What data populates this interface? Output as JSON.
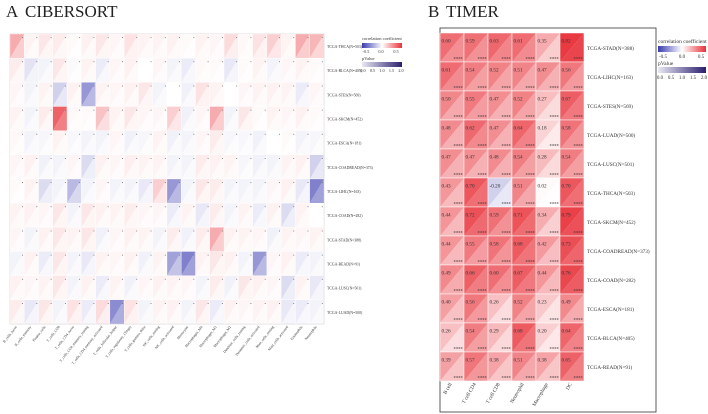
{
  "chart_data": [
    {
      "type": "heatmap",
      "panel_label": "A",
      "title": "CIBERSORT",
      "columns": [
        "B_cells_naive",
        "B_cells_memory",
        "Plasma_cells",
        "T_cells_CD8",
        "T_cells_CD4_naive",
        "T_cells_CD4_memory_resting",
        "T_cells_CD4_memory_activated",
        "T_cells_follicular_helper",
        "T_cells_regulatory_(Tregs)",
        "T_cells_gamma_delta",
        "NK_cells_resting",
        "NK_cells_activated",
        "Monocytes",
        "Macrophages_M0",
        "Macrophages_M1",
        "Macrophages_M2",
        "Dendritic_cells_resting",
        "Dendritic_cells_activated",
        "Mast_cells_resting",
        "Mast_cells_activated",
        "Eosinophils",
        "Neutrophils"
      ],
      "rows": [
        "TCGA-THCA(N=503)",
        "TCGA-BLCA(N=405)",
        "TCGA-STES(N=569)",
        "TCGA-SKCM(N=452)",
        "TCGA-ESCA(N=181)",
        "TCGA-COADREAD(N=373)",
        "TCGA-LIHC(N=163)",
        "TCGA-COAD(N=282)",
        "TCGA-STAD(N=388)",
        "TCGA-READ(N=91)",
        "TCGA-LUSC(N=501)",
        "TCGA-LUAD(N=500)"
      ],
      "values": [
        [
          0.35,
          0.05,
          0.1,
          0.08,
          0.02,
          0.06,
          0.1,
          0.04,
          0.12,
          0.05,
          0.05,
          0.06,
          0.02,
          0.05,
          0.04,
          0.15,
          0.03,
          0.12,
          0.2,
          0.05,
          0.35,
          0.3
        ],
        [
          0.08,
          -0.12,
          -0.05,
          0.1,
          -0.02,
          0.05,
          -0.08,
          0.04,
          0.06,
          0.0,
          0.04,
          -0.05,
          -0.08,
          0.03,
          0.02,
          -0.1,
          0.02,
          0.05,
          -0.05,
          0.04,
          0.05,
          0.02
        ],
        [
          0.04,
          -0.05,
          0.05,
          -0.2,
          0.06,
          -0.45,
          0.05,
          0.04,
          0.06,
          0.1,
          -0.05,
          0.0,
          -0.06,
          0.12,
          0.05,
          0.0,
          0.04,
          0.05,
          0.06,
          0.05,
          -0.08,
          0.04
        ],
        [
          0.05,
          -0.05,
          0.08,
          0.65,
          0.03,
          0.02,
          0.25,
          0.05,
          0.1,
          0.04,
          0.04,
          0.2,
          -0.06,
          0.04,
          0.35,
          -0.05,
          0.1,
          0.02,
          0.05,
          0.04,
          0.06,
          0.02
        ],
        [
          0.03,
          -0.05,
          -0.04,
          0.05,
          -0.03,
          -0.05,
          -0.05,
          0.04,
          -0.06,
          -0.04,
          0.05,
          -0.06,
          -0.05,
          0.04,
          0.08,
          -0.04,
          -0.03,
          -0.06,
          0.0,
          0.02,
          -0.05,
          -0.04
        ],
        [
          0.04,
          0.06,
          -0.06,
          -0.05,
          0.04,
          -0.15,
          0.06,
          0.04,
          0.07,
          0.05,
          0.05,
          -0.05,
          -0.05,
          0.08,
          0.06,
          0.05,
          -0.04,
          -0.06,
          -0.05,
          0.05,
          0.06,
          -0.2
        ],
        [
          0.02,
          0.05,
          -0.15,
          -0.05,
          -0.3,
          -0.05,
          0.04,
          -0.05,
          -0.05,
          -0.1,
          0.2,
          -0.45,
          -0.05,
          0.1,
          0.08,
          -0.05,
          -0.05,
          -0.05,
          0.04,
          0.06,
          -0.1,
          -0.55
        ],
        [
          0.05,
          0.06,
          0.04,
          0.1,
          -0.05,
          0.1,
          0.06,
          0.05,
          0.08,
          0.04,
          0.04,
          -0.08,
          0.05,
          -0.1,
          0.08,
          -0.05,
          0.05,
          -0.08,
          0.06,
          -0.15,
          0.05,
          0.0
        ],
        [
          0.04,
          -0.05,
          0.06,
          0.1,
          0.05,
          0.1,
          -0.06,
          0.04,
          0.06,
          0.05,
          -0.05,
          0.08,
          -0.06,
          0.08,
          0.35,
          0.06,
          0.05,
          0.04,
          -0.06,
          0.05,
          0.04,
          0.05
        ],
        [
          -0.05,
          0.06,
          -0.08,
          0.1,
          -0.05,
          -0.1,
          0.05,
          0.04,
          0.06,
          -0.06,
          0.05,
          -0.4,
          -0.55,
          0.05,
          0.1,
          0.06,
          -0.05,
          -0.45,
          0.04,
          0.06,
          -0.08,
          -0.05
        ],
        [
          0.06,
          0.04,
          0.05,
          0.1,
          -0.05,
          0.06,
          -0.08,
          0.05,
          -0.06,
          0.04,
          0.06,
          0.05,
          0.04,
          -0.05,
          0.08,
          -0.06,
          0.1,
          0.06,
          0.04,
          -0.15,
          0.05,
          -0.1
        ],
        [
          0.08,
          -0.1,
          0.1,
          -0.05,
          0.12,
          -0.08,
          0.15,
          -0.5,
          0.12,
          -0.05,
          0.05,
          0.06,
          -0.05,
          0.1,
          -0.08,
          0.06,
          0.04,
          0.05,
          0.06,
          -0.1,
          -0.08,
          -0.05
        ]
      ],
      "legend": {
        "title": "correlation coefficient",
        "ticks": [
          "-0.5",
          "0.0",
          "0.5"
        ],
        "pvalue_title": "pValue",
        "pvalue_ticks": [
          "0.0",
          "0.5",
          "1.0",
          "1.5",
          "2.0"
        ]
      }
    },
    {
      "type": "heatmap",
      "panel_label": "B",
      "title": "TIMER",
      "columns": [
        "B cell",
        "T cell CD4",
        "T cell CD8",
        "Neutrophil",
        "Macrophage",
        "DC"
      ],
      "rows": [
        "TCGA-STAD(N=388)",
        "TCGA-LIHC(N=163)",
        "TCGA-STES(N=569)",
        "TCGA-LUAD(N=500)",
        "TCGA-LUSC(N=501)",
        "TCGA-THCA(N=503)",
        "TCGA-SKCM(N=452)",
        "TCGA-COADREAD(N=373)",
        "TCGA-COAD(N=282)",
        "TCGA-ESCA(N=181)",
        "TCGA-BLCA(N=405)",
        "TCGA-READ(N=91)"
      ],
      "values": [
        [
          0.6,
          0.59,
          0.63,
          0.61,
          0.35,
          0.82
        ],
        [
          0.61,
          0.54,
          0.52,
          0.51,
          0.47,
          0.56
        ],
        [
          0.5,
          0.55,
          0.47,
          0.52,
          0.27,
          0.67
        ],
        [
          0.48,
          0.62,
          0.47,
          0.64,
          0.18,
          0.58
        ],
        [
          0.47,
          0.47,
          0.48,
          0.54,
          0.28,
          0.54
        ],
        [
          0.43,
          0.7,
          -0.2,
          0.51,
          0.02,
          0.7
        ],
        [
          0.44,
          0.72,
          0.59,
          0.71,
          0.34,
          0.79
        ],
        [
          0.44,
          0.55,
          0.58,
          0.68,
          0.42,
          0.73
        ],
        [
          0.49,
          0.66,
          0.6,
          0.67,
          0.44,
          0.76
        ],
        [
          0.4,
          0.56,
          0.26,
          0.52,
          0.23,
          0.49
        ],
        [
          0.26,
          0.54,
          0.29,
          0.68,
          0.2,
          0.64
        ],
        [
          0.39,
          0.57,
          0.38,
          0.51,
          0.38,
          0.65
        ]
      ],
      "labels": [
        [
          "0.60",
          "0.59",
          "0.63",
          "0.61",
          "0.35",
          "0.82"
        ],
        [
          "0.61",
          "0.54",
          "0.52",
          "0.51",
          "0.47",
          "0.56"
        ],
        [
          "0.50",
          "0.55",
          "0.47",
          "0.52",
          "0.27",
          "0.67"
        ],
        [
          "0.48",
          "0.62",
          "0.47",
          "0.64",
          "0.18",
          "0.58"
        ],
        [
          "0.47",
          "0.47",
          "0.48",
          "0.54",
          "0.28",
          "0.54"
        ],
        [
          "0.43",
          "0.70",
          "-0.20",
          "0.51",
          "0.02",
          "0.70"
        ],
        [
          "0.44",
          "0.72",
          "0.59",
          "0.71",
          "0.34",
          "0.79"
        ],
        [
          "0.44",
          "0.55",
          "0.58",
          "0.68",
          "0.42",
          "0.73"
        ],
        [
          "0.49",
          "0.66",
          "0.60",
          "0.67",
          "0.44",
          "0.76"
        ],
        [
          "0.40",
          "0.56",
          "0.26",
          "0.52",
          "0.23",
          "0.49"
        ],
        [
          "0.26",
          "0.54",
          "0.29",
          "0.68",
          "0.20",
          "0.64"
        ],
        [
          "0.39",
          "0.57",
          "0.38",
          "0.51",
          "0.38",
          "0.65"
        ]
      ],
      "significance": "****",
      "legend": {
        "title": "correlation coefficient",
        "ticks": [
          "-0.5",
          "0.0",
          "0.5"
        ],
        "pvalue_title": "pValue",
        "pvalue_ticks": [
          "0.0",
          "0.5",
          "1.0",
          "1.5",
          "2.0"
        ]
      }
    }
  ],
  "colors": {
    "positive": "#e8323a",
    "negative": "#3a3ab0",
    "neutral": "#ffffff",
    "pvalue_high": "#2b1f6e",
    "pvalue_low": "#e8e8f4"
  }
}
